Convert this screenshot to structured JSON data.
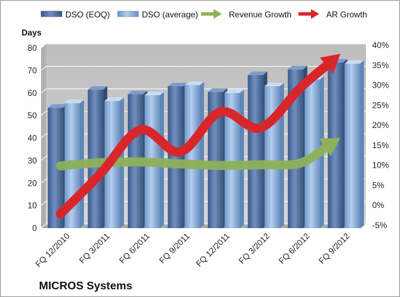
{
  "chart_data": {
    "type": "bar",
    "title": "",
    "footer_label": "MICROS Systems",
    "ylabel": "Days",
    "ylim": [
      0,
      80
    ],
    "y_ticks": [
      "0",
      "10",
      "20",
      "30",
      "40",
      "50",
      "60",
      "70",
      "80"
    ],
    "y2lim": [
      -5,
      40
    ],
    "y2_ticks": [
      "-5%",
      "0%",
      "5%",
      "10%",
      "15%",
      "20%",
      "25%",
      "30%",
      "35%",
      "40%"
    ],
    "categories": [
      "FQ 12/2010",
      "FQ 3/2011",
      "FQ 6/2011",
      "FQ 9/2011",
      "FQ 12/2011",
      "FQ 3/2012",
      "FQ 6/2012",
      "FQ 9/2012"
    ],
    "series": [
      {
        "name": "DSO (EOQ)",
        "kind": "bar",
        "axis": "left",
        "color": "#4f6d9c",
        "values": [
          53.5,
          61.5,
          59.5,
          63,
          60.5,
          68,
          70.5,
          73.5
        ]
      },
      {
        "name": "DSO (average)",
        "kind": "bar",
        "axis": "left",
        "color": "#7fa6d6",
        "values": [
          55.5,
          56.5,
          59,
          63.5,
          60,
          63,
          66,
          73
        ]
      },
      {
        "name": "Revenue Growth",
        "kind": "arrow-line",
        "axis": "right",
        "color": "#8db15a",
        "values": [
          9.5,
          10.3,
          10.5,
          10,
          9.6,
          9.8,
          10.2,
          16.5
        ]
      },
      {
        "name": "AR Growth",
        "kind": "arrow-line",
        "axis": "right",
        "color": "#d9262b",
        "values": [
          -2.5,
          7.5,
          18.5,
          13,
          23,
          19,
          29,
          37.5
        ]
      }
    ],
    "grid": true,
    "legend_position": "top",
    "plot_background": "#c8c8c8"
  }
}
